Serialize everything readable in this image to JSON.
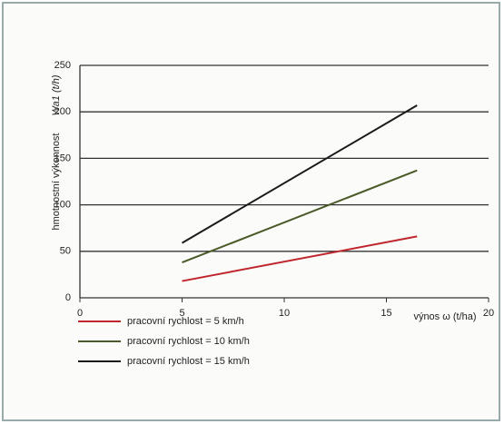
{
  "chart_data": {
    "type": "line",
    "ylabel": "hmotnostní výkonnost",
    "ylabel_symbol": "Wa1 (t/h)",
    "xlabel": "výnos ω (t/ha)",
    "x": [
      5,
      16.5
    ],
    "series": [
      {
        "name": "pracovní rychlost = 5 km/h",
        "color": "#c0262d",
        "values": [
          18,
          66
        ]
      },
      {
        "name": "pracovní rychlost = 10 km/h",
        "color": "#4a5a28",
        "values": [
          38,
          137
        ]
      },
      {
        "name": "pracovní rychlost = 15 km/h",
        "color": "#1a1a1a",
        "values": [
          59,
          207
        ]
      }
    ],
    "xlim": [
      0,
      20
    ],
    "xticks": [
      0,
      5,
      10,
      15,
      20
    ],
    "ylim": [
      0,
      250
    ],
    "yticks": [
      0,
      50,
      100,
      150,
      200,
      250
    ],
    "grid": true
  }
}
